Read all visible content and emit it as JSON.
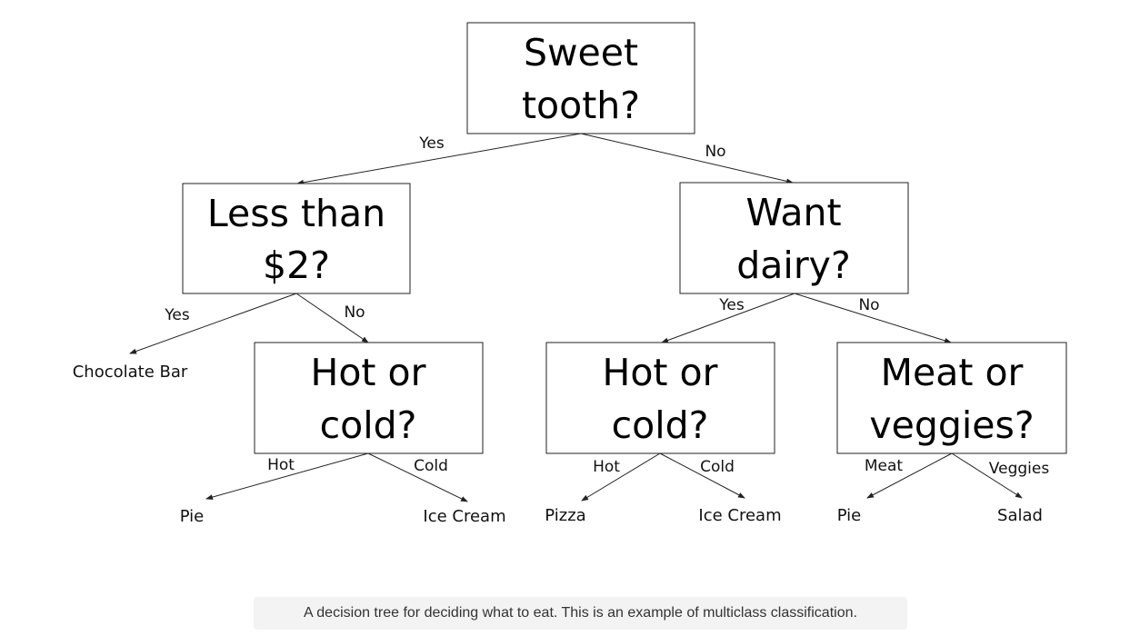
{
  "nodes": {
    "root": [
      "Sweet",
      "tooth?"
    ],
    "price": [
      "Less than",
      "$2?"
    ],
    "dairy": [
      "Want",
      "dairy?"
    ],
    "temp_left": [
      "Hot or",
      "cold?"
    ],
    "temp_right": [
      "Hot or",
      "cold?"
    ],
    "meat": [
      "Meat or",
      "veggies?"
    ]
  },
  "edges": {
    "root_yes": "Yes",
    "root_no": "No",
    "price_yes": "Yes",
    "price_no": "No",
    "dairy_yes": "Yes",
    "dairy_no": "No",
    "temp_left_hot": "Hot",
    "temp_left_cold": "Cold",
    "temp_right_hot": "Hot",
    "temp_right_cold": "Cold",
    "meat_meat": "Meat",
    "meat_veggies": "Veggies"
  },
  "leaves": {
    "chocolate": "Chocolate Bar",
    "pie_left": "Pie",
    "ice_cream_left": "Ice Cream",
    "pizza": "Pizza",
    "ice_cream_right": "Ice Cream",
    "pie_right": "Pie",
    "salad": "Salad"
  },
  "caption": "A decision tree for deciding what to eat. This is an example of multiclass classification."
}
